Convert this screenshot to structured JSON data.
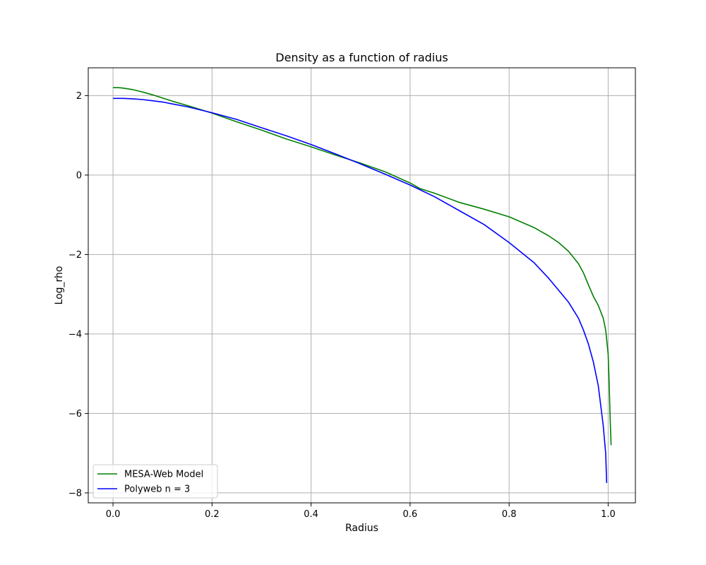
{
  "chart_data": {
    "type": "line",
    "title": "Density as a function of radius",
    "xlabel": "Radius",
    "ylabel": "Log_rho",
    "xlim": [
      -0.05,
      1.055
    ],
    "ylim": [
      -8.25,
      2.7
    ],
    "xticks": [
      0.0,
      0.2,
      0.4,
      0.6,
      0.8,
      1.0
    ],
    "xtick_labels": [
      "0.0",
      "0.2",
      "0.4",
      "0.6",
      "0.8",
      "1.0"
    ],
    "yticks": [
      2,
      0,
      -2,
      -4,
      -6,
      -8
    ],
    "ytick_labels": [
      "2",
      "0",
      "−2",
      "−4",
      "−6",
      "−8"
    ],
    "grid": true,
    "legend_position": "lower-left",
    "series": [
      {
        "name": "MESA-Web Model",
        "color": "#008000",
        "x": [
          0.0,
          0.01,
          0.02,
          0.03,
          0.04,
          0.05,
          0.06,
          0.08,
          0.1,
          0.12,
          0.15,
          0.2,
          0.25,
          0.3,
          0.35,
          0.4,
          0.45,
          0.5,
          0.55,
          0.6,
          0.62,
          0.65,
          0.7,
          0.75,
          0.8,
          0.85,
          0.88,
          0.9,
          0.92,
          0.94,
          0.95,
          0.96,
          0.97,
          0.98,
          0.99,
          0.995,
          1.0,
          1.002,
          1.004,
          1.006
        ],
        "y": [
          2.2,
          2.2,
          2.19,
          2.17,
          2.15,
          2.12,
          2.09,
          2.02,
          1.94,
          1.86,
          1.75,
          1.56,
          1.34,
          1.13,
          0.91,
          0.71,
          0.5,
          0.3,
          0.08,
          -0.2,
          -0.34,
          -0.46,
          -0.69,
          -0.86,
          -1.05,
          -1.32,
          -1.53,
          -1.7,
          -1.92,
          -2.23,
          -2.46,
          -2.76,
          -3.05,
          -3.28,
          -3.6,
          -3.9,
          -4.5,
          -5.2,
          -6.1,
          -6.8
        ]
      },
      {
        "name": "Polyweb n = 3",
        "color": "#0000ff",
        "x": [
          0.0,
          0.02,
          0.04,
          0.06,
          0.08,
          0.1,
          0.12,
          0.15,
          0.2,
          0.25,
          0.3,
          0.35,
          0.4,
          0.45,
          0.5,
          0.55,
          0.6,
          0.65,
          0.7,
          0.75,
          0.8,
          0.85,
          0.88,
          0.9,
          0.92,
          0.94,
          0.95,
          0.96,
          0.97,
          0.98,
          0.985,
          0.99,
          0.995,
          0.997
        ],
        "y": [
          1.93,
          1.93,
          1.92,
          1.9,
          1.87,
          1.84,
          1.79,
          1.72,
          1.57,
          1.4,
          1.19,
          0.99,
          0.77,
          0.53,
          0.28,
          0.02,
          -0.25,
          -0.55,
          -0.9,
          -1.25,
          -1.7,
          -2.2,
          -2.6,
          -2.9,
          -3.2,
          -3.6,
          -3.9,
          -4.25,
          -4.7,
          -5.3,
          -5.8,
          -6.3,
          -7.0,
          -7.75
        ]
      }
    ]
  }
}
